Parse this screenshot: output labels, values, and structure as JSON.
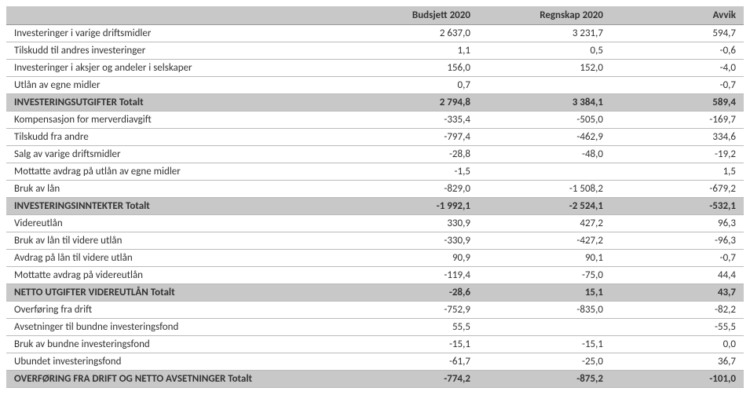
{
  "columns": [
    "",
    "Budsjett 2020",
    "Regnskap 2020",
    "Avvik"
  ],
  "rows": [
    {
      "c": [
        "Investeringer i varige driftsmidler",
        "2 637,0",
        "3 231,7",
        "594,7"
      ],
      "total": false
    },
    {
      "c": [
        "Tilskudd til andres investeringer",
        "1,1",
        "0,5",
        "-0,6"
      ],
      "total": false
    },
    {
      "c": [
        "Investeringer i aksjer og andeler i selskaper",
        "156,0",
        "152,0",
        "-4,0"
      ],
      "total": false
    },
    {
      "c": [
        "Utlån av egne midler",
        "0,7",
        "",
        "-0,7"
      ],
      "total": false
    },
    {
      "c": [
        "INVESTERINGSUTGIFTER Totalt",
        "2 794,8",
        "3 384,1",
        "589,4"
      ],
      "total": true
    },
    {
      "c": [
        "Kompensasjon for merverdiavgift",
        "-335,4",
        "-505,0",
        "-169,7"
      ],
      "total": false
    },
    {
      "c": [
        "Tilskudd fra andre",
        "-797,4",
        "-462,9",
        "334,6"
      ],
      "total": false
    },
    {
      "c": [
        "Salg av varige driftsmidler",
        "-28,8",
        "-48,0",
        "-19,2"
      ],
      "total": false
    },
    {
      "c": [
        "Mottatte avdrag på utlån av egne midler",
        "-1,5",
        "",
        "1,5"
      ],
      "total": false
    },
    {
      "c": [
        "Bruk av lån",
        "-829,0",
        "-1 508,2",
        "-679,2"
      ],
      "total": false
    },
    {
      "c": [
        "INVESTERINGSINNTEKTER Totalt",
        "-1 992,1",
        "-2 524,1",
        "-532,1"
      ],
      "total": true
    },
    {
      "c": [
        "Videreutlån",
        "330,9",
        "427,2",
        "96,3"
      ],
      "total": false
    },
    {
      "c": [
        "Bruk av lån til videre utlån",
        "-330,9",
        "-427,2",
        "-96,3"
      ],
      "total": false
    },
    {
      "c": [
        "Avdrag på lån til videre utlån",
        "90,9",
        "90,1",
        "-0,7"
      ],
      "total": false
    },
    {
      "c": [
        "Mottatte avdrag på videreutlån",
        "-119,4",
        "-75,0",
        "44,4"
      ],
      "total": false
    },
    {
      "c": [
        "NETTO UTGIFTER VIDEREUTLÅN Totalt",
        "-28,6",
        "15,1",
        "43,7"
      ],
      "total": true
    },
    {
      "c": [
        "Overføring fra drift",
        "-752,9",
        "-835,0",
        "-82,2"
      ],
      "total": false
    },
    {
      "c": [
        "Avsetninger til bundne investeringsfond",
        "55,5",
        "",
        "-55,5"
      ],
      "total": false
    },
    {
      "c": [
        "Bruk av bundne investeringsfond",
        "-15,1",
        "-15,1",
        "0,0"
      ],
      "total": false
    },
    {
      "c": [
        "Ubundet investeringsfond",
        "-61,7",
        "-25,0",
        "36,7"
      ],
      "total": false
    },
    {
      "c": [
        "OVERFØRING FRA DRIFT OG NETTO AVSETNINGER Totalt",
        "-774,2",
        "-875,2",
        "-101,0"
      ],
      "total": true
    }
  ]
}
